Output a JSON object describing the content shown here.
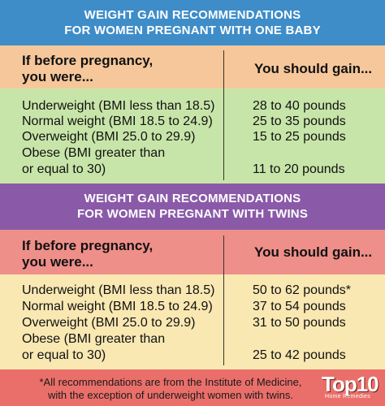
{
  "section1": {
    "title_line1": "WEIGHT GAIN RECOMMENDATIONS",
    "title_line2": "FOR WOMEN PREGNANT WITH ONE BABY",
    "header_left_line1": "If before pregnancy,",
    "header_left_line2": "you were...",
    "header_right": "You should gain...",
    "rows": [
      {
        "category": "Underweight (BMI less than 18.5)",
        "gain": "28 to 40 pounds"
      },
      {
        "category": "Normal weight (BMI 18.5 to 24.9)",
        "gain": "25 to 35 pounds"
      },
      {
        "category": "Overweight (BMI 25.0 to 29.9)",
        "gain": "15 to 25 pounds"
      },
      {
        "category_line1": "Obese (BMI greater than",
        "category_line2": "or equal to 30)",
        "gain": "11 to 20 pounds"
      }
    ]
  },
  "section2": {
    "title_line1": "WEIGHT GAIN RECOMMENDATIONS",
    "title_line2": "FOR WOMEN PREGNANT WITH TWINS",
    "header_left_line1": "If before pregnancy,",
    "header_left_line2": "you were...",
    "header_right": "You should gain...",
    "rows": [
      {
        "category": "Underweight (BMI less than 18.5)",
        "gain": "50 to 62 pounds*"
      },
      {
        "category": "Normal weight (BMI 18.5 to 24.9)",
        "gain": "37 to 54 pounds"
      },
      {
        "category": "Overweight (BMI 25.0 to 29.9)",
        "gain": "31 to 50 pounds"
      },
      {
        "category_line1": "Obese (BMI greater than",
        "category_line2": "or equal to 30)",
        "gain": "25 to 42 pounds"
      }
    ]
  },
  "footer": {
    "note_line1": "*All recommendations are from the Institute of Medicine,",
    "note_line2": "with the exception of underweight women with twins."
  },
  "logo": {
    "main": "Top10",
    "sub": "Home Remedies"
  },
  "colors": {
    "title1_bg": "#3e8dc8",
    "title2_bg": "#8a5aa8",
    "header1_bg": "#f6c79a",
    "body1_bg": "#c8e5a9",
    "header2_bg": "#ef8f8a",
    "body2_bg": "#f9e8b2",
    "footer_bg": "#ea6f6a"
  }
}
